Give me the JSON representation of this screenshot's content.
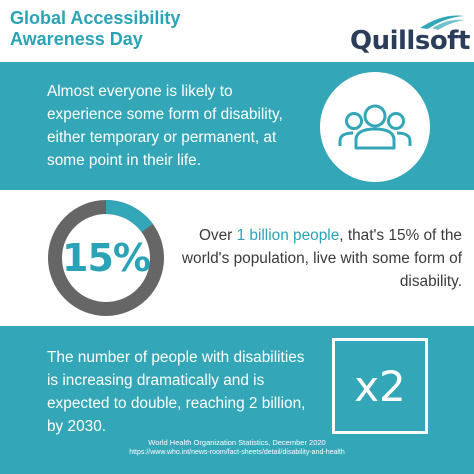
{
  "header": {
    "title": "Global Accessibility Awareness Day",
    "logo_text": "Quillsoft"
  },
  "section1": {
    "text": "Almost everyone is likely to experience some form of disability, either temporary or permanent, at some point in their life.",
    "icon": "people-group-icon"
  },
  "section2": {
    "percent_label": "15%",
    "percent_value": 15,
    "text_before": "Over ",
    "highlight": "1 billion people",
    "text_after": ", that's 15% of the world's population, live with some form of disability."
  },
  "section3": {
    "text": "The number of people with disabilities is increasing dramatically and is expected to double, reaching 2 billion, by 2030.",
    "multiplier": "x2"
  },
  "source": {
    "line1": "World Health Organization Statistics, December 2020",
    "line2": "https://www.who.int/news-room/fact-sheets/detail/disability-and-health"
  },
  "colors": {
    "teal": "#33a6b8",
    "navy": "#2c3d59",
    "gray": "#666666",
    "text_dark": "#3b3b3b"
  }
}
